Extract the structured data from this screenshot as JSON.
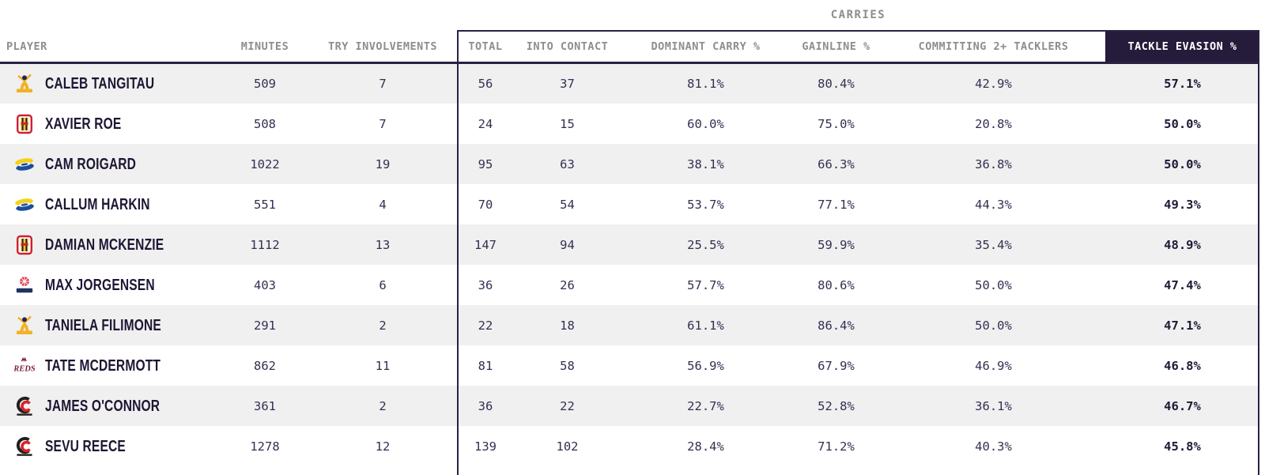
{
  "table": {
    "group_header": "CARRIES",
    "columns": [
      "PLAYER",
      "MINUTES",
      "TRY INVOLVEMENTS",
      "TOTAL",
      "INTO CONTACT",
      "DOMINANT CARRY %",
      "GAINLINE %",
      "COMMITTING 2+ TACKLERS",
      "TACKLE EVASION %"
    ],
    "highlighted_column": "TACKLE EVASION %",
    "rows": [
      {
        "player": "CALEB TANGITAU",
        "team": "highlanders",
        "minutes": "509",
        "try_involvements": "7",
        "total": "56",
        "into_contact": "37",
        "dominant_carry_pct": "81.1%",
        "gainline_pct": "80.4%",
        "committing_2plus_tacklers": "42.9%",
        "tackle_evasion_pct": "57.1%"
      },
      {
        "player": "XAVIER ROE",
        "team": "chiefs",
        "minutes": "508",
        "try_involvements": "7",
        "total": "24",
        "into_contact": "15",
        "dominant_carry_pct": "60.0%",
        "gainline_pct": "75.0%",
        "committing_2plus_tacklers": "20.8%",
        "tackle_evasion_pct": "50.0%"
      },
      {
        "player": "CAM ROIGARD",
        "team": "hurricanes",
        "minutes": "1022",
        "try_involvements": "19",
        "total": "95",
        "into_contact": "63",
        "dominant_carry_pct": "38.1%",
        "gainline_pct": "66.3%",
        "committing_2plus_tacklers": "36.8%",
        "tackle_evasion_pct": "50.0%"
      },
      {
        "player": "CALLUM HARKIN",
        "team": "hurricanes",
        "minutes": "551",
        "try_involvements": "4",
        "total": "70",
        "into_contact": "54",
        "dominant_carry_pct": "53.7%",
        "gainline_pct": "77.1%",
        "committing_2plus_tacklers": "44.3%",
        "tackle_evasion_pct": "49.3%"
      },
      {
        "player": "DAMIAN MCKENZIE",
        "team": "chiefs",
        "minutes": "1112",
        "try_involvements": "13",
        "total": "147",
        "into_contact": "94",
        "dominant_carry_pct": "25.5%",
        "gainline_pct": "59.9%",
        "committing_2plus_tacklers": "35.4%",
        "tackle_evasion_pct": "48.9%"
      },
      {
        "player": "MAX JORGENSEN",
        "team": "waratahs",
        "minutes": "403",
        "try_involvements": "6",
        "total": "36",
        "into_contact": "26",
        "dominant_carry_pct": "57.7%",
        "gainline_pct": "80.6%",
        "committing_2plus_tacklers": "50.0%",
        "tackle_evasion_pct": "47.4%"
      },
      {
        "player": "TANIELA FILIMONE",
        "team": "highlanders",
        "minutes": "291",
        "try_involvements": "2",
        "total": "22",
        "into_contact": "18",
        "dominant_carry_pct": "61.1%",
        "gainline_pct": "86.4%",
        "committing_2plus_tacklers": "50.0%",
        "tackle_evasion_pct": "47.1%"
      },
      {
        "player": "TATE MCDERMOTT",
        "team": "reds",
        "minutes": "862",
        "try_involvements": "11",
        "total": "81",
        "into_contact": "58",
        "dominant_carry_pct": "56.9%",
        "gainline_pct": "67.9%",
        "committing_2plus_tacklers": "46.9%",
        "tackle_evasion_pct": "46.8%"
      },
      {
        "player": "JAMES O'CONNOR",
        "team": "crusaders",
        "minutes": "361",
        "try_involvements": "2",
        "total": "36",
        "into_contact": "22",
        "dominant_carry_pct": "22.7%",
        "gainline_pct": "52.8%",
        "committing_2plus_tacklers": "36.1%",
        "tackle_evasion_pct": "46.7%"
      },
      {
        "player": "SEVU REECE",
        "team": "crusaders",
        "minutes": "1278",
        "try_involvements": "12",
        "total": "139",
        "into_contact": "102",
        "dominant_carry_pct": "28.4%",
        "gainline_pct": "71.2%",
        "committing_2plus_tacklers": "40.3%",
        "tackle_evasion_pct": "45.8%"
      }
    ]
  },
  "colors": {
    "highlight_header_bg": "#251b3a",
    "highlight_header_text": "#ffffff",
    "header_text": "#8d8d92",
    "player_text": "#1e1533",
    "value_text": "#372e52",
    "row_stripe": "#f0f0f0",
    "group_border": "#2a2143"
  }
}
